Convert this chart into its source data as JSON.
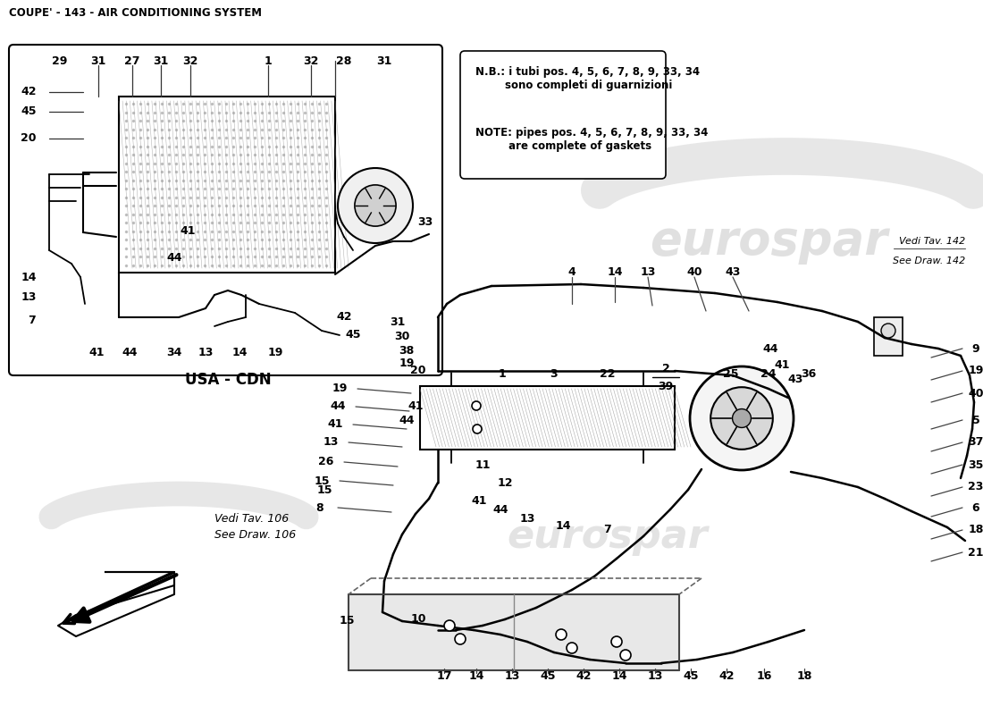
{
  "title": "COUPE' - 143 - AIR CONDITIONING SYSTEM",
  "bg_color": "#ffffff",
  "note_text_it": "N.B.: i tubi pos. 4, 5, 6, 7, 8, 9, 33, 34\n        sono completi di guarnizioni",
  "note_text_en": "NOTE: pipes pos. 4, 5, 6, 7, 8, 9, 33, 34\n         are complete of gaskets",
  "usa_cdn_label": "USA - CDN",
  "vedi_142": "Vedi Tav. 142\nSee Draw. 142",
  "vedi_106": "Vedi Tav. 106\nSee Draw. 106",
  "watermark": "eurospar"
}
